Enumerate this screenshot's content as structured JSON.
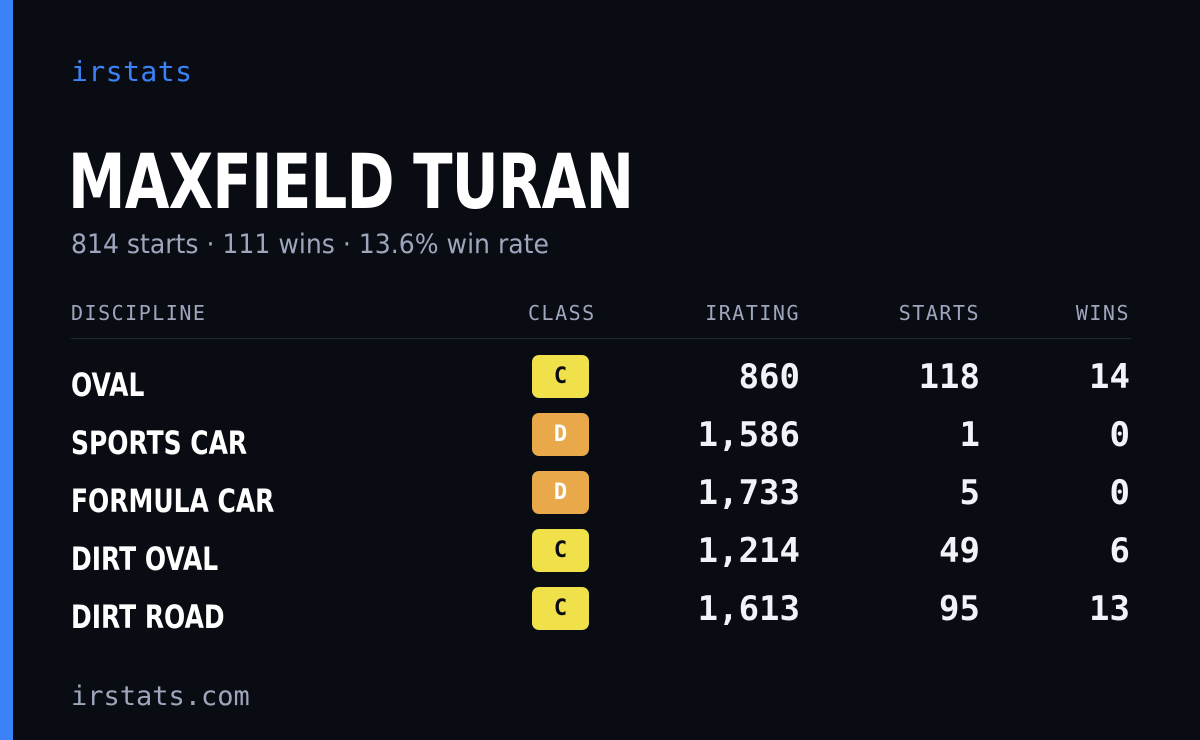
{
  "brand": "irstats",
  "colors": {
    "accent": "#3b82f6",
    "background": "#0a0c14",
    "class_c": "#f0e04a",
    "class_d": "#e9a94a"
  },
  "driver": {
    "name": "MAXFIELD TURAN",
    "summary": "814 starts · 111 wins · 13.6% win rate"
  },
  "table": {
    "headers": {
      "discipline": "DISCIPLINE",
      "class": "CLASS",
      "irating": "IRATING",
      "starts": "STARTS",
      "wins": "WINS"
    },
    "rows": [
      {
        "discipline": "OVAL",
        "class": "C",
        "irating": "860",
        "starts": "118",
        "wins": "14"
      },
      {
        "discipline": "SPORTS CAR",
        "class": "D",
        "irating": "1,586",
        "starts": "1",
        "wins": "0"
      },
      {
        "discipline": "FORMULA CAR",
        "class": "D",
        "irating": "1,733",
        "starts": "5",
        "wins": "0"
      },
      {
        "discipline": "DIRT OVAL",
        "class": "C",
        "irating": "1,214",
        "starts": "49",
        "wins": "6"
      },
      {
        "discipline": "DIRT ROAD",
        "class": "C",
        "irating": "1,613",
        "starts": "95",
        "wins": "13"
      }
    ]
  },
  "footer": "irstats.com"
}
